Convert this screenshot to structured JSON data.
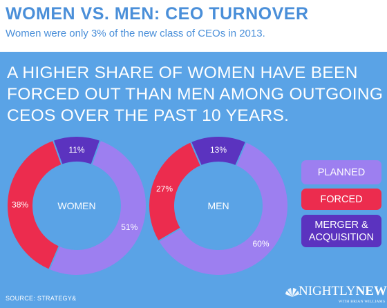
{
  "header": {
    "title": "WOMEN VS. MEN: CEO TURNOVER",
    "subtitle": "Women were only 3% of the new class of CEOs in 2013."
  },
  "headline": "A HIGHER SHARE OF WOMEN HAVE BEEN FORCED OUT THAN MEN AMONG OUTGOING CEOS OVER THE PAST 10 YEARS.",
  "legend": {
    "planned": "PLANNED",
    "forced": "FORCED",
    "merger_line1": "MERGER &",
    "merger_line2": "ACQUISITION"
  },
  "colors": {
    "planned": "#9d7ff0",
    "forced": "#ec2c4e",
    "merger": "#5b33bf",
    "inner": "#5aa3e6",
    "background": "#5aa3e6"
  },
  "source": "SOURCE: STRATEGY&",
  "logo": {
    "brand_nightly": "NIGHTLY",
    "brand_news": "NEWS",
    "byline": "WITH BRIAN WILLIAMS"
  },
  "chart_data": [
    {
      "type": "pie",
      "title": "WOMEN",
      "categories": [
        "PLANNED",
        "FORCED",
        "MERGER & ACQUISITION"
      ],
      "values": [
        51,
        38,
        11
      ],
      "labels": [
        "51%",
        "38%",
        "11%"
      ]
    },
    {
      "type": "pie",
      "title": "MEN",
      "categories": [
        "PLANNED",
        "FORCED",
        "MERGER & ACQUISITION"
      ],
      "values": [
        60,
        27,
        13
      ],
      "labels": [
        "60%",
        "27%",
        "13%"
      ]
    }
  ]
}
